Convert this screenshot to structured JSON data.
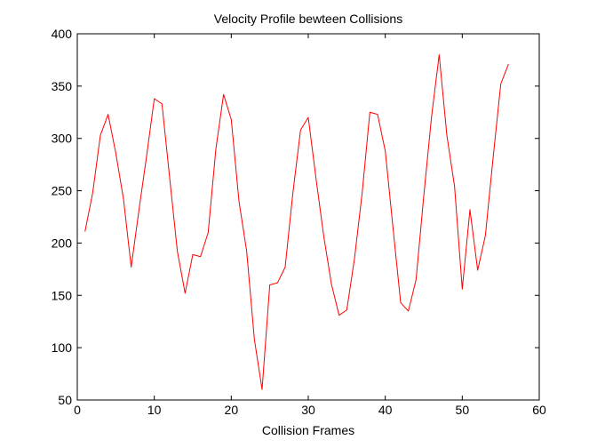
{
  "chart_data": {
    "type": "line",
    "title": "Velocity Profile bewteen Collisions",
    "xlabel": "Collision Frames",
    "ylabel": "",
    "xlim": [
      0,
      60
    ],
    "ylim": [
      50,
      400
    ],
    "xticks": [
      0,
      10,
      20,
      30,
      40,
      50,
      60
    ],
    "yticks": [
      50,
      100,
      150,
      200,
      250,
      300,
      350,
      400
    ],
    "grid": false,
    "series": [
      {
        "color": "#ff0000",
        "x": [
          1,
          2,
          3,
          4,
          5,
          6,
          7,
          8,
          9,
          10,
          11,
          12,
          13,
          14,
          15,
          16,
          17,
          18,
          19,
          20,
          21,
          22,
          23,
          24,
          25,
          26,
          27,
          28,
          29,
          30,
          31,
          32,
          33,
          34,
          35,
          36,
          37,
          38,
          39,
          40,
          41,
          42,
          43,
          44,
          45,
          46,
          47,
          48,
          49,
          50,
          51,
          52,
          53,
          54,
          55,
          56
        ],
        "values": [
          211,
          248,
          303,
          323,
          286,
          242,
          177,
          231,
          283,
          338,
          333,
          262,
          192,
          152,
          189,
          187,
          210,
          290,
          342,
          318,
          240,
          192,
          108,
          60,
          160,
          162,
          177,
          248,
          308,
          320,
          262,
          207,
          161,
          131,
          136,
          185,
          248,
          325,
          323,
          288,
          215,
          143,
          135,
          165,
          245,
          320,
          380,
          303,
          254,
          156,
          232,
          174,
          207,
          281,
          352,
          371
        ]
      }
    ]
  }
}
